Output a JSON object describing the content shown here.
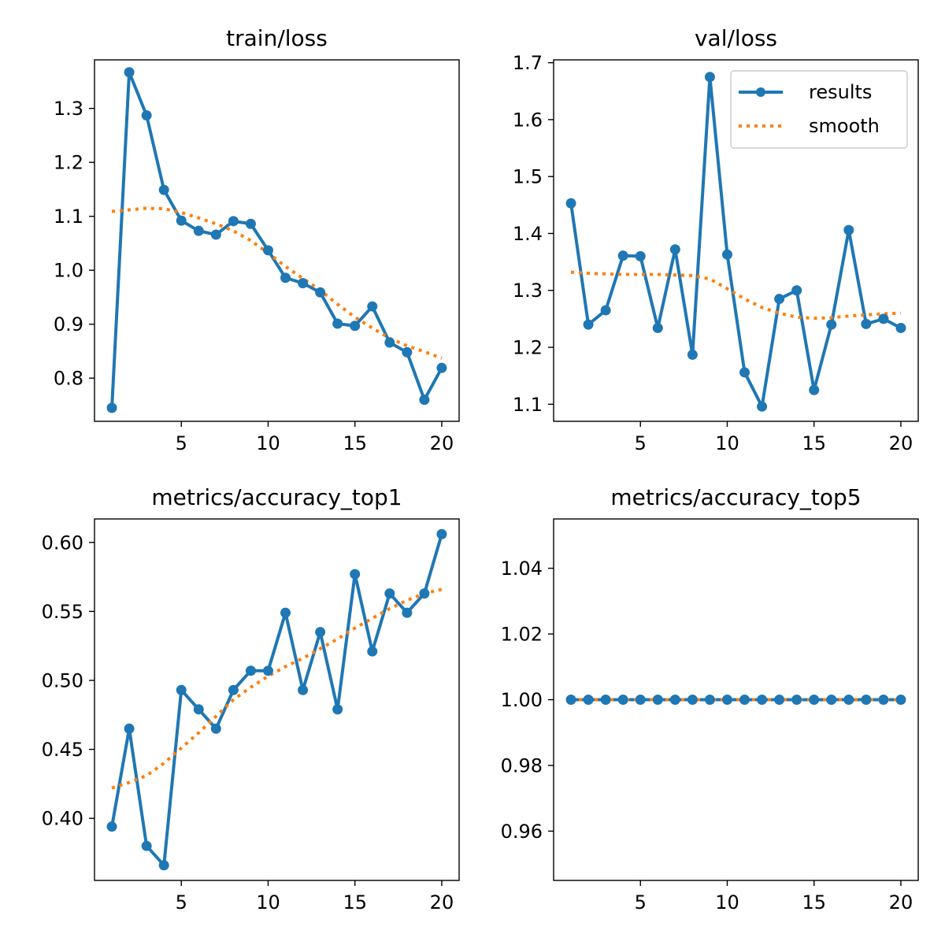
{
  "colors": {
    "results": "#1f77b4",
    "smooth": "#ff7f0e"
  },
  "legend": {
    "results_label": "results",
    "smooth_label": "smooth",
    "placement": "upper-right of val/loss panel"
  },
  "chart_data": [
    {
      "type": "line",
      "title": "train/loss",
      "x": [
        1,
        2,
        3,
        4,
        5,
        6,
        7,
        8,
        9,
        10,
        11,
        12,
        13,
        14,
        15,
        16,
        17,
        18,
        19,
        20
      ],
      "xlim": [
        0,
        21
      ],
      "ylim": [
        0.72,
        1.39
      ],
      "xticks": [
        5,
        10,
        15,
        20
      ],
      "yticks": [
        0.8,
        0.9,
        1.0,
        1.1,
        1.2,
        1.3
      ],
      "ytick_labels": [
        "0.8",
        "0.9",
        "1.0",
        "1.1",
        "1.2",
        "1.3"
      ],
      "series": [
        {
          "name": "results",
          "style": "line-markers",
          "values": [
            0.745,
            1.367,
            1.287,
            1.149,
            1.092,
            1.073,
            1.066,
            1.091,
            1.086,
            1.037,
            0.986,
            0.976,
            0.959,
            0.901,
            0.897,
            0.933,
            0.866,
            0.848,
            0.76,
            0.819
          ]
        },
        {
          "name": "smooth",
          "style": "dotted",
          "values": [
            1.109,
            1.112,
            1.115,
            1.114,
            1.107,
            1.097,
            1.086,
            1.073,
            1.055,
            1.032,
            1.007,
            0.985,
            0.963,
            0.937,
            0.913,
            0.893,
            0.874,
            0.86,
            0.849,
            0.837
          ]
        }
      ],
      "grid": false
    },
    {
      "type": "line",
      "title": "val/loss",
      "x": [
        1,
        2,
        3,
        4,
        5,
        6,
        7,
        8,
        9,
        10,
        11,
        12,
        13,
        14,
        15,
        16,
        17,
        18,
        19,
        20
      ],
      "xlim": [
        0,
        21
      ],
      "ylim": [
        1.07,
        1.705
      ],
      "xticks": [
        5,
        10,
        15,
        20
      ],
      "yticks": [
        1.1,
        1.2,
        1.3,
        1.4,
        1.5,
        1.6,
        1.7
      ],
      "ytick_labels": [
        "1.1",
        "1.2",
        "1.3",
        "1.4",
        "1.5",
        "1.6",
        "1.7"
      ],
      "series": [
        {
          "name": "results",
          "style": "line-markers",
          "values": [
            1.453,
            1.24,
            1.265,
            1.361,
            1.36,
            1.234,
            1.372,
            1.187,
            1.675,
            1.363,
            1.156,
            1.096,
            1.285,
            1.3,
            1.125,
            1.24,
            1.406,
            1.241,
            1.25,
            1.234
          ]
        },
        {
          "name": "smooth",
          "style": "dotted",
          "values": [
            1.332,
            1.33,
            1.329,
            1.328,
            1.328,
            1.328,
            1.327,
            1.326,
            1.32,
            1.303,
            1.285,
            1.27,
            1.26,
            1.253,
            1.251,
            1.252,
            1.255,
            1.257,
            1.259,
            1.26
          ]
        }
      ],
      "legend": true,
      "grid": false
    },
    {
      "type": "line",
      "title": "metrics/accuracy_top1",
      "x": [
        1,
        2,
        3,
        4,
        5,
        6,
        7,
        8,
        9,
        10,
        11,
        12,
        13,
        14,
        15,
        16,
        17,
        18,
        19,
        20
      ],
      "xlim": [
        0,
        21
      ],
      "ylim": [
        0.355,
        0.617
      ],
      "xticks": [
        5,
        10,
        15,
        20
      ],
      "yticks": [
        0.4,
        0.45,
        0.5,
        0.55,
        0.6
      ],
      "ytick_labels": [
        "0.40",
        "0.45",
        "0.50",
        "0.55",
        "0.60"
      ],
      "series": [
        {
          "name": "results",
          "style": "line-markers",
          "values": [
            0.394,
            0.465,
            0.38,
            0.366,
            0.493,
            0.479,
            0.465,
            0.493,
            0.507,
            0.507,
            0.549,
            0.493,
            0.535,
            0.479,
            0.577,
            0.521,
            0.563,
            0.549,
            0.563,
            0.606
          ]
        },
        {
          "name": "smooth",
          "style": "dotted",
          "values": [
            0.422,
            0.426,
            0.431,
            0.44,
            0.451,
            0.462,
            0.474,
            0.486,
            0.495,
            0.503,
            0.51,
            0.516,
            0.523,
            0.53,
            0.538,
            0.545,
            0.552,
            0.558,
            0.563,
            0.566
          ]
        }
      ],
      "grid": false
    },
    {
      "type": "line",
      "title": "metrics/accuracy_top5",
      "x": [
        1,
        2,
        3,
        4,
        5,
        6,
        7,
        8,
        9,
        10,
        11,
        12,
        13,
        14,
        15,
        16,
        17,
        18,
        19,
        20
      ],
      "xlim": [
        0,
        21
      ],
      "ylim": [
        0.945,
        1.055
      ],
      "xticks": [
        5,
        10,
        15,
        20
      ],
      "yticks": [
        0.96,
        0.98,
        1.0,
        1.02,
        1.04
      ],
      "ytick_labels": [
        "0.96",
        "0.98",
        "1.00",
        "1.02",
        "1.04"
      ],
      "series": [
        {
          "name": "results",
          "style": "line-markers",
          "values": [
            1.0,
            1.0,
            1.0,
            1.0,
            1.0,
            1.0,
            1.0,
            1.0,
            1.0,
            1.0,
            1.0,
            1.0,
            1.0,
            1.0,
            1.0,
            1.0,
            1.0,
            1.0,
            1.0,
            1.0
          ]
        },
        {
          "name": "smooth",
          "style": "dotted",
          "values": [
            1.0,
            1.0,
            1.0,
            1.0,
            1.0,
            1.0,
            1.0,
            1.0,
            1.0,
            1.0,
            1.0,
            1.0,
            1.0,
            1.0,
            1.0,
            1.0,
            1.0,
            1.0,
            1.0,
            1.0
          ]
        }
      ],
      "grid": false
    }
  ]
}
